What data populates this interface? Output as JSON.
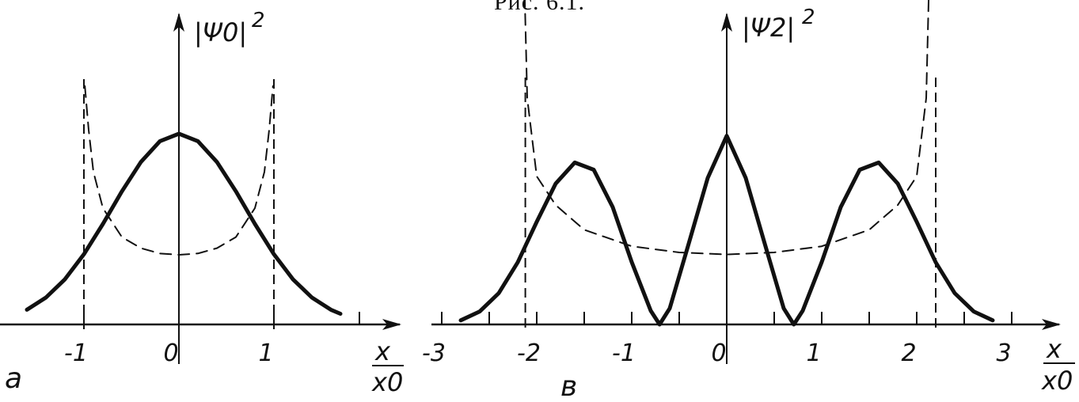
{
  "caption": "Рис. 6.1.",
  "chart_data": [
    {
      "type": "line",
      "panel_label": "a",
      "ylabel": "|Ψ0|",
      "ylabel_exp": "2",
      "xlabel_top": "x",
      "xlabel_bottom": "x0",
      "x_ticks": [
        -1,
        0,
        1
      ],
      "x_tick_labels": [
        "-1",
        "0",
        "1"
      ],
      "xlim": [
        -1.6,
        2.3
      ],
      "grid": false,
      "series": [
        {
          "style": "solid",
          "x": [
            -1.6,
            -1.4,
            -1.2,
            -1.0,
            -0.8,
            -0.6,
            -0.4,
            -0.2,
            0.0,
            0.2,
            0.4,
            0.6,
            0.8,
            1.0,
            1.2,
            1.4,
            1.6,
            1.7
          ],
          "y": [
            0.077,
            0.141,
            0.237,
            0.368,
            0.527,
            0.698,
            0.852,
            0.961,
            1.0,
            0.961,
            0.852,
            0.698,
            0.527,
            0.368,
            0.237,
            0.141,
            0.077,
            0.056
          ]
        },
        {
          "style": "dashed",
          "x": [
            -0.99,
            -0.95,
            -0.9,
            -0.8,
            -0.6,
            -0.4,
            -0.2,
            0.0,
            0.2,
            0.4,
            0.6,
            0.8,
            0.9,
            0.95,
            0.99
          ],
          "y": [
            1.25,
            1.02,
            0.8,
            0.61,
            0.458,
            0.4,
            0.372,
            0.365,
            0.372,
            0.4,
            0.458,
            0.61,
            0.8,
            1.02,
            1.25
          ]
        }
      ],
      "vlines_dashed": [
        -1,
        1
      ]
    },
    {
      "type": "line",
      "panel_label": "в",
      "ylabel": "|Ψ2|",
      "ylabel_exp": "2",
      "xlabel_top": "x",
      "xlabel_bottom": "x0",
      "x_ticks": [
        -3,
        -2,
        -1,
        0,
        1,
        2,
        3
      ],
      "x_tick_labels": [
        "-3",
        "-2",
        "-1",
        "0",
        "1",
        "2",
        "3"
      ],
      "xlim": [
        -3.05,
        3.4
      ],
      "grid": false,
      "series": [
        {
          "style": "solid",
          "x": [
            -2.8,
            -2.6,
            -2.4,
            -2.2,
            -2.0,
            -1.8,
            -1.6,
            -1.4,
            -1.2,
            -1.0,
            -0.8,
            -0.707,
            -0.6,
            -0.4,
            -0.2,
            0.0,
            0.2,
            0.4,
            0.6,
            0.707,
            0.8,
            1.0,
            1.2,
            1.4,
            1.6,
            1.8,
            2.0,
            2.2,
            2.4,
            2.6,
            2.8
          ],
          "y": [
            0.02,
            0.063,
            0.152,
            0.302,
            0.499,
            0.685,
            0.787,
            0.752,
            0.57,
            0.303,
            0.067,
            0.0,
            0.078,
            0.393,
            0.712,
            0.917,
            0.712,
            0.393,
            0.078,
            0.0,
            0.067,
            0.303,
            0.57,
            0.752,
            0.787,
            0.685,
            0.499,
            0.302,
            0.152,
            0.063,
            0.02
          ]
        },
        {
          "style": "dashed",
          "x": [
            -2.15,
            -2.1,
            -2.0,
            -1.8,
            -1.5,
            -1.0,
            -0.5,
            0.0,
            0.5,
            1.0,
            1.5,
            1.8,
            2.0,
            2.1,
            2.15
          ],
          "y": [
            2.04,
            1.1,
            0.72,
            0.58,
            0.46,
            0.38,
            0.35,
            0.34,
            0.35,
            0.38,
            0.46,
            0.58,
            0.72,
            1.1,
            2.04
          ]
        }
      ],
      "vlines_dashed": [
        -2.12,
        2.2
      ]
    }
  ]
}
